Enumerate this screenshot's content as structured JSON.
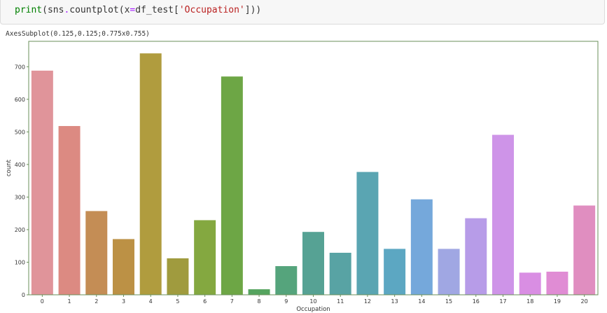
{
  "code": {
    "func": "print",
    "open1": "(",
    "module": "sns",
    "dot": ".",
    "method": "countplot",
    "open2": "(",
    "arg": "x",
    "eq": "=",
    "df": "df_test",
    "bracket_open": "[",
    "key": "'Occupation'",
    "bracket_close": "]",
    "close": "))"
  },
  "output": {
    "text": "AxesSubplot(0.125,0.125;0.775x0.755)"
  },
  "chart_data": {
    "type": "bar",
    "xlabel": "Occupation",
    "ylabel": "count",
    "categories": [
      "0",
      "1",
      "2",
      "3",
      "4",
      "5",
      "6",
      "7",
      "8",
      "9",
      "10",
      "11",
      "12",
      "13",
      "14",
      "15",
      "16",
      "17",
      "18",
      "19",
      "20"
    ],
    "values": [
      688,
      518,
      257,
      171,
      741,
      112,
      229,
      670,
      17,
      88,
      193,
      129,
      377,
      141,
      293,
      141,
      235,
      491,
      68,
      71,
      274
    ],
    "ylim": [
      0,
      778
    ],
    "yticks": [
      0,
      100,
      200,
      300,
      400,
      500,
      600,
      700
    ],
    "colors": [
      "#e0949a",
      "#dc8a82",
      "#c48d55",
      "#bc9145",
      "#b09c3e",
      "#a09b3e",
      "#84a840",
      "#6da645",
      "#55a45f",
      "#55a47c",
      "#56a294",
      "#58a3a4",
      "#5aa5b2",
      "#5ca7c2",
      "#75a8db",
      "#a0a7e3",
      "#b79ce8",
      "#ce94e8",
      "#d98ee3",
      "#e08cd4",
      "#e08ec0"
    ],
    "axis_color": "#6a8f5a",
    "grid": false
  }
}
